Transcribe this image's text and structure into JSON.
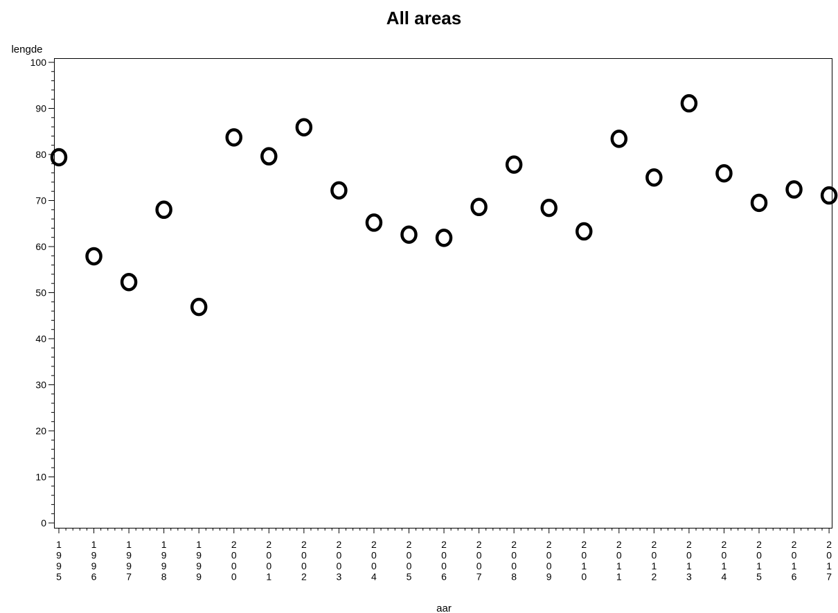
{
  "chart_data": {
    "type": "scatter",
    "title": "All areas",
    "xlabel": "aar",
    "ylabel": "lengde",
    "categories": [
      "1995",
      "1996",
      "1997",
      "1998",
      "1999",
      "2000",
      "2001",
      "2002",
      "2003",
      "2004",
      "2005",
      "2006",
      "2007",
      "2008",
      "2009",
      "2010",
      "2011",
      "2012",
      "2013",
      "2014",
      "2015",
      "2016",
      "2017"
    ],
    "values": [
      79.4,
      57.9,
      52.3,
      68.0,
      46.9,
      83.7,
      79.6,
      85.9,
      72.2,
      65.2,
      62.6,
      61.9,
      68.6,
      77.8,
      68.4,
      63.3,
      83.4,
      75.0,
      91.1,
      75.9,
      69.5,
      72.4,
      71.1
    ],
    "ylim": [
      0,
      100
    ],
    "yticks": [
      0,
      10,
      20,
      30,
      40,
      50,
      60,
      70,
      80,
      90,
      100
    ],
    "marker": "circle-open",
    "grid": false,
    "legend": "none"
  }
}
